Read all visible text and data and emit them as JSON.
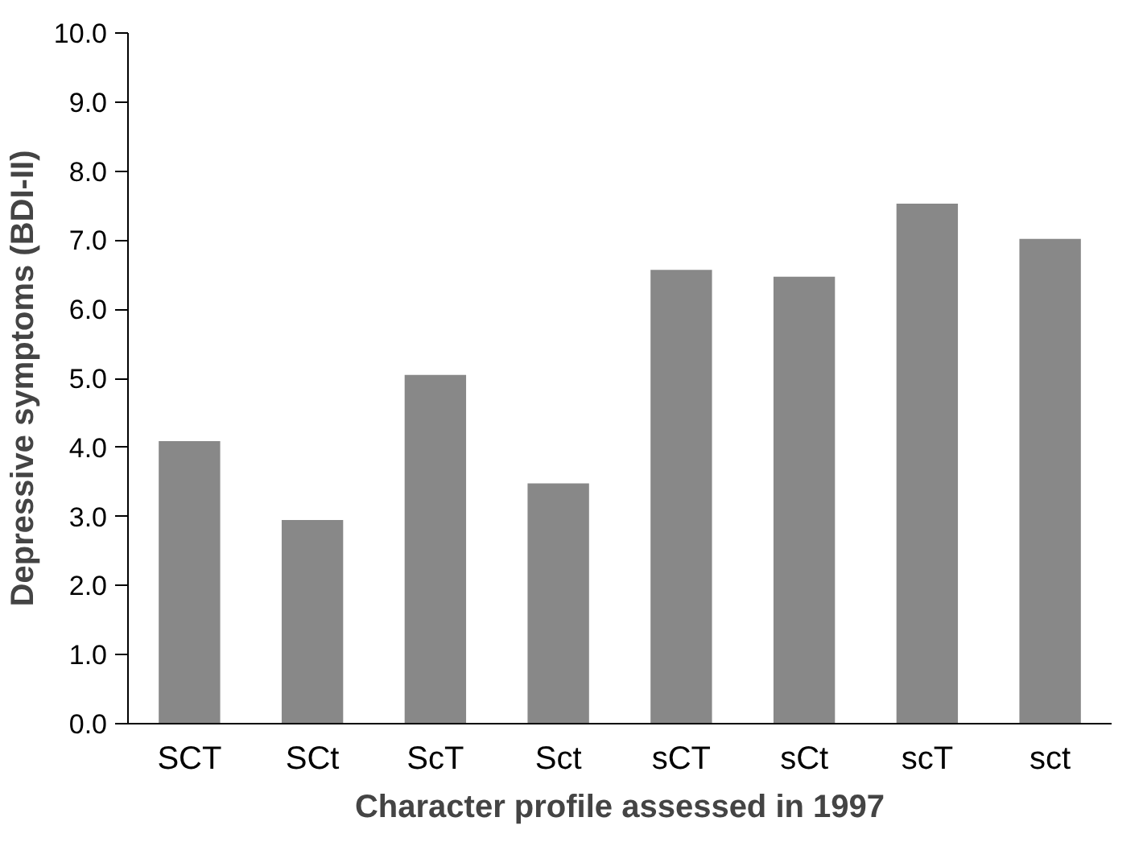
{
  "chart_data": {
    "type": "bar",
    "xlabel": "Character profile assessed in 1997",
    "ylabel": "Depressive symptoms (BDI-II)",
    "categories": [
      "SCT",
      "SCt",
      "ScT",
      "Sct",
      "sCT",
      "sCt",
      "scT",
      "sct"
    ],
    "values": [
      4.09,
      2.95,
      5.05,
      3.48,
      6.57,
      6.47,
      7.53,
      7.02
    ],
    "color": "#888888",
    "ylim": [
      0,
      10
    ],
    "yticks": [
      {
        "value": 0,
        "label": "0.0"
      },
      {
        "value": 1,
        "label": "1.0"
      },
      {
        "value": 2,
        "label": "2.0"
      },
      {
        "value": 3,
        "label": "3.0"
      },
      {
        "value": 4,
        "label": "4.0"
      },
      {
        "value": 5,
        "label": "5.0"
      },
      {
        "value": 6,
        "label": "6.0"
      },
      {
        "value": 7,
        "label": "7.0"
      },
      {
        "value": 8,
        "label": "8.0"
      },
      {
        "value": 9,
        "label": "9.0"
      },
      {
        "value": 10,
        "label": "10.0"
      }
    ],
    "grid": false
  }
}
